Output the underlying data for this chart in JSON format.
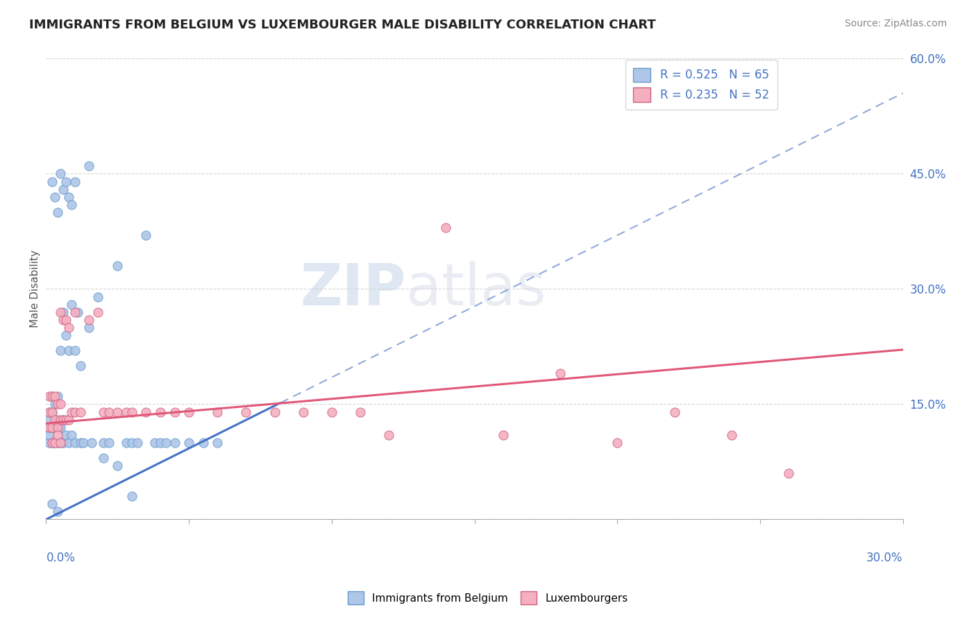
{
  "title": "IMMIGRANTS FROM BELGIUM VS LUXEMBOURGER MALE DISABILITY CORRELATION CHART",
  "source": "Source: ZipAtlas.com",
  "ylabel": "Male Disability",
  "xlim": [
    0.0,
    0.3
  ],
  "ylim": [
    0.0,
    0.6
  ],
  "yticks_right": [
    0.0,
    0.15,
    0.3,
    0.45,
    0.6
  ],
  "ytick_labels_right": [
    "",
    "15.0%",
    "30.0%",
    "45.0%",
    "60.0%"
  ],
  "watermark_zip": "ZIP",
  "watermark_atlas": "atlas",
  "series": [
    {
      "label": "Immigrants from Belgium",
      "R": 0.525,
      "N": 65,
      "color": "#aec6e8",
      "edge_color": "#6699cc",
      "trend_color": "#4472c4",
      "trend_solid": [
        0.0,
        0.082
      ],
      "trend_dashed": [
        0.082,
        0.3
      ],
      "trend_start_y": 0.0,
      "trend_slope": 1.85
    },
    {
      "label": "Luxembourgers",
      "R": 0.235,
      "N": 52,
      "color": "#f4afc0",
      "edge_color": "#d06080",
      "trend_color": "#e05878",
      "trend_start_y": 0.125,
      "trend_slope": 0.32
    }
  ],
  "legend": {
    "blue_label": "R = 0.525   N = 65",
    "pink_label": "R = 0.235   N = 52",
    "facecolor": "#ffffff",
    "edgecolor": "#cccccc"
  },
  "background_color": "#ffffff",
  "grid_color": "#cccccc",
  "title_color": "#222222",
  "axis_label_color": "#4472c4",
  "blue_points": {
    "x": [
      0.001,
      0.001,
      0.001,
      0.001,
      0.001,
      0.002,
      0.002,
      0.002,
      0.002,
      0.003,
      0.003,
      0.003,
      0.004,
      0.004,
      0.004,
      0.005,
      0.005,
      0.005,
      0.006,
      0.006,
      0.006,
      0.007,
      0.007,
      0.008,
      0.008,
      0.009,
      0.009,
      0.01,
      0.01,
      0.011,
      0.012,
      0.012,
      0.013,
      0.015,
      0.016,
      0.018,
      0.02,
      0.022,
      0.025,
      0.028,
      0.03,
      0.032,
      0.035,
      0.038,
      0.04,
      0.042,
      0.045,
      0.05,
      0.055,
      0.06,
      0.002,
      0.003,
      0.004,
      0.005,
      0.006,
      0.007,
      0.008,
      0.009,
      0.01,
      0.015,
      0.02,
      0.025,
      0.03,
      0.002,
      0.004
    ],
    "y": [
      0.1,
      0.11,
      0.12,
      0.13,
      0.14,
      0.1,
      0.12,
      0.14,
      0.16,
      0.1,
      0.12,
      0.15,
      0.1,
      0.13,
      0.16,
      0.1,
      0.12,
      0.22,
      0.1,
      0.13,
      0.27,
      0.11,
      0.24,
      0.1,
      0.22,
      0.11,
      0.28,
      0.1,
      0.22,
      0.27,
      0.1,
      0.2,
      0.1,
      0.25,
      0.1,
      0.29,
      0.1,
      0.1,
      0.33,
      0.1,
      0.1,
      0.1,
      0.37,
      0.1,
      0.1,
      0.1,
      0.1,
      0.1,
      0.1,
      0.1,
      0.44,
      0.42,
      0.4,
      0.45,
      0.43,
      0.44,
      0.42,
      0.41,
      0.44,
      0.46,
      0.08,
      0.07,
      0.03,
      0.02,
      0.01
    ]
  },
  "pink_points": {
    "x": [
      0.001,
      0.001,
      0.001,
      0.002,
      0.002,
      0.002,
      0.003,
      0.003,
      0.004,
      0.004,
      0.005,
      0.005,
      0.005,
      0.006,
      0.006,
      0.007,
      0.007,
      0.008,
      0.008,
      0.009,
      0.01,
      0.01,
      0.012,
      0.015,
      0.018,
      0.02,
      0.022,
      0.025,
      0.028,
      0.03,
      0.035,
      0.04,
      0.045,
      0.05,
      0.06,
      0.07,
      0.08,
      0.09,
      0.1,
      0.11,
      0.12,
      0.14,
      0.16,
      0.18,
      0.2,
      0.22,
      0.24,
      0.26,
      0.002,
      0.003,
      0.004,
      0.005
    ],
    "y": [
      0.12,
      0.14,
      0.16,
      0.12,
      0.14,
      0.16,
      0.13,
      0.16,
      0.12,
      0.15,
      0.13,
      0.15,
      0.27,
      0.13,
      0.26,
      0.13,
      0.26,
      0.13,
      0.25,
      0.14,
      0.14,
      0.27,
      0.14,
      0.26,
      0.27,
      0.14,
      0.14,
      0.14,
      0.14,
      0.14,
      0.14,
      0.14,
      0.14,
      0.14,
      0.14,
      0.14,
      0.14,
      0.14,
      0.14,
      0.14,
      0.11,
      0.38,
      0.11,
      0.19,
      0.1,
      0.14,
      0.11,
      0.06,
      0.1,
      0.1,
      0.11,
      0.1
    ]
  }
}
